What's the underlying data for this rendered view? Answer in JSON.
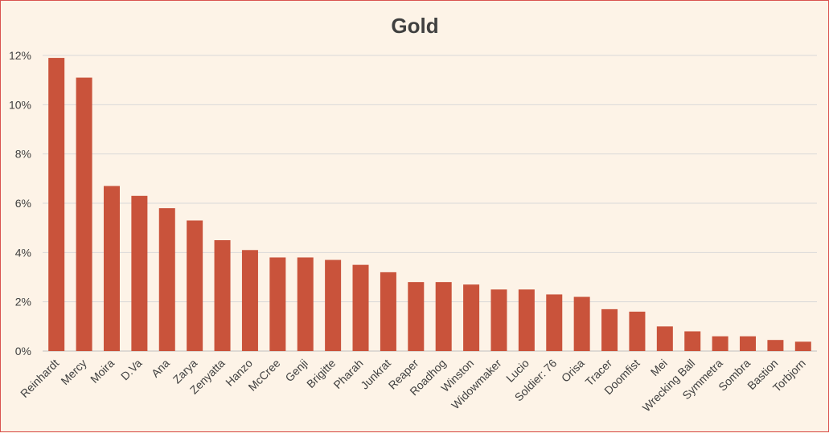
{
  "chart_data": {
    "type": "bar",
    "title": "Gold",
    "xlabel": "",
    "ylabel": "",
    "ylim": [
      0,
      12
    ],
    "yticks": [
      "0%",
      "2%",
      "4%",
      "6%",
      "8%",
      "10%",
      "12%"
    ],
    "grid": true,
    "legend": "none",
    "bar_color": "#c9533b",
    "categories": [
      "Reinhardt",
      "Mercy",
      "Moira",
      "D.Va",
      "Ana",
      "Zarya",
      "Zenyatta",
      "Hanzo",
      "McCree",
      "Genji",
      "Brigitte",
      "Pharah",
      "Junkrat",
      "Reaper",
      "Roadhog",
      "Winston",
      "Widowmaker",
      "Lucio",
      "Soldier: 76",
      "Orisa",
      "Tracer",
      "Doomfist",
      "Mei",
      "Wrecking Ball",
      "Symmetra",
      "Sombra",
      "Bastion",
      "Torbjorn"
    ],
    "values": [
      11.9,
      11.1,
      6.7,
      6.3,
      5.8,
      5.3,
      4.5,
      4.1,
      3.8,
      3.8,
      3.7,
      3.5,
      3.2,
      2.8,
      2.8,
      2.7,
      2.5,
      2.5,
      2.3,
      2.2,
      1.7,
      1.6,
      1.0,
      0.8,
      0.6,
      0.6,
      0.45,
      0.38
    ]
  }
}
